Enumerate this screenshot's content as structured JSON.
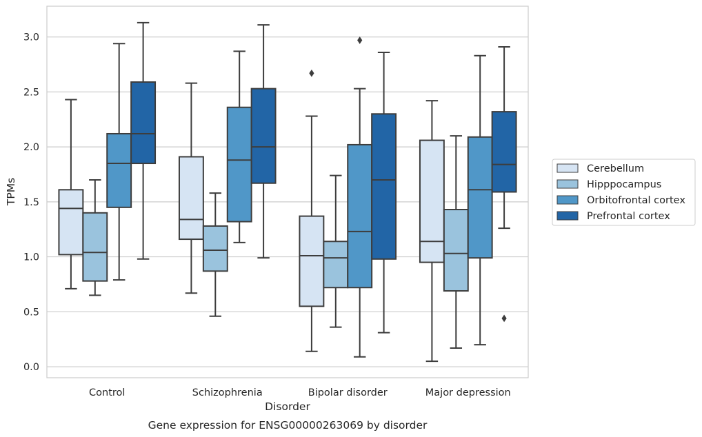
{
  "chart_data": {
    "type": "box",
    "caption": "Gene expression for ENSG00000263069 by disorder",
    "xlabel": "Disorder",
    "ylabel": "TPMs",
    "ylim": [
      -0.1,
      3.28
    ],
    "yticks": [
      "0.0",
      "0.5",
      "1.0",
      "1.5",
      "2.0",
      "2.5",
      "3.0"
    ],
    "grid": true,
    "legend_position": "right",
    "categories": [
      "Control",
      "Schizophrenia",
      "Bipolar disorder",
      "Major depression"
    ],
    "series": [
      {
        "name": "Cerebellum",
        "color": "#d6e4f3",
        "boxes": [
          {
            "whislo": 0.71,
            "q1": 1.02,
            "med": 1.44,
            "q3": 1.61,
            "whishi": 2.43,
            "fliers": []
          },
          {
            "whislo": 0.67,
            "q1": 1.16,
            "med": 1.34,
            "q3": 1.91,
            "whishi": 2.58,
            "fliers": []
          },
          {
            "whislo": 0.14,
            "q1": 0.55,
            "med": 1.01,
            "q3": 1.37,
            "whishi": 2.28,
            "fliers": [
              2.67
            ]
          },
          {
            "whislo": 0.05,
            "q1": 0.95,
            "med": 1.14,
            "q3": 2.06,
            "whishi": 2.42,
            "fliers": []
          }
        ]
      },
      {
        "name": "Hipppocampus",
        "color": "#9ac3dd",
        "boxes": [
          {
            "whislo": 0.65,
            "q1": 0.78,
            "med": 1.04,
            "q3": 1.4,
            "whishi": 1.7,
            "fliers": []
          },
          {
            "whislo": 0.46,
            "q1": 0.87,
            "med": 1.06,
            "q3": 1.28,
            "whishi": 1.58,
            "fliers": []
          },
          {
            "whislo": 0.36,
            "q1": 0.72,
            "med": 0.99,
            "q3": 1.14,
            "whishi": 1.74,
            "fliers": []
          },
          {
            "whislo": 0.17,
            "q1": 0.69,
            "med": 1.03,
            "q3": 1.43,
            "whishi": 2.1,
            "fliers": []
          }
        ]
      },
      {
        "name": "Orbitofrontal cortex",
        "color": "#5097c8",
        "boxes": [
          {
            "whislo": 0.79,
            "q1": 1.45,
            "med": 1.85,
            "q3": 2.12,
            "whishi": 2.94,
            "fliers": []
          },
          {
            "whislo": 1.13,
            "q1": 1.32,
            "med": 1.88,
            "q3": 2.36,
            "whishi": 2.87,
            "fliers": []
          },
          {
            "whislo": 0.09,
            "q1": 0.72,
            "med": 1.23,
            "q3": 2.02,
            "whishi": 2.53,
            "fliers": [
              2.97
            ]
          },
          {
            "whislo": 0.2,
            "q1": 0.99,
            "med": 1.61,
            "q3": 2.09,
            "whishi": 2.83,
            "fliers": []
          }
        ]
      },
      {
        "name": "Prefrontal cortex",
        "color": "#2265a6",
        "boxes": [
          {
            "whislo": 0.98,
            "q1": 1.85,
            "med": 2.12,
            "q3": 2.59,
            "whishi": 3.13,
            "fliers": []
          },
          {
            "whislo": 0.99,
            "q1": 1.67,
            "med": 2.0,
            "q3": 2.53,
            "whishi": 3.11,
            "fliers": []
          },
          {
            "whislo": 0.31,
            "q1": 0.98,
            "med": 1.7,
            "q3": 2.3,
            "whishi": 2.86,
            "fliers": []
          },
          {
            "whislo": 1.26,
            "q1": 1.59,
            "med": 1.84,
            "q3": 2.32,
            "whishi": 2.91,
            "fliers": [
              0.44
            ]
          }
        ]
      }
    ]
  }
}
